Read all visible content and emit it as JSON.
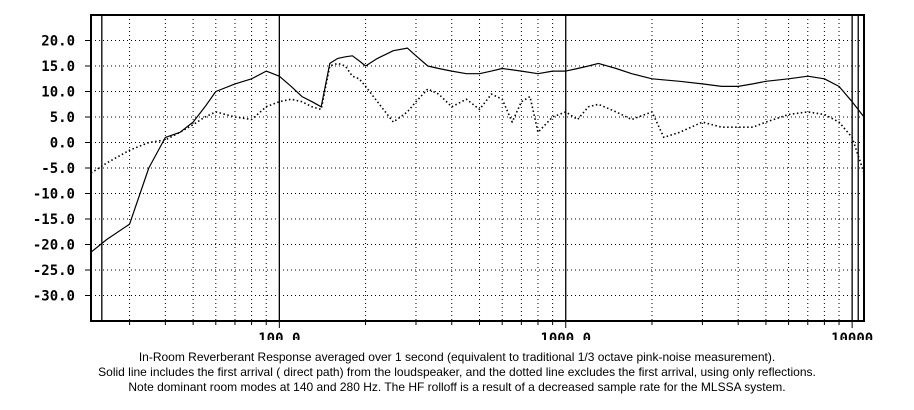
{
  "chart_data": {
    "type": "line",
    "x_scale": "log",
    "grid": true,
    "xlim": [
      22,
      11000
    ],
    "ylim": [
      -35,
      25
    ],
    "y_ticks": [
      "20.0",
      "15.0",
      "10.0",
      "5.0",
      "0.0",
      "-5.0",
      "-10.0",
      "-15.0",
      "-20.0",
      "-25.0",
      "-30.0"
    ],
    "x_ticks": [
      "100.0",
      "1000.0",
      "10000"
    ],
    "caption": [
      "In-Room Reverberant Response averaged over 1 second (equivalent to traditional 1/3 octave pink-noise measurement).",
      "Solid line includes the first arrival ( direct path) from the loudspeaker, and the dotted line excludes the first arrival, using only reflections.",
      "Note dominant room modes at 140 and 280 Hz. The HF rolloff is a result of a decreased sample rate for the MLSSA system."
    ],
    "series": [
      {
        "style": "solid",
        "x": [
          22,
          25,
          30,
          35,
          40,
          45,
          50,
          55,
          60,
          70,
          80,
          90,
          100,
          110,
          120,
          130,
          140,
          150,
          160,
          170,
          180,
          190,
          200,
          220,
          250,
          280,
          300,
          330,
          360,
          400,
          450,
          500,
          550,
          600,
          700,
          800,
          900,
          1000,
          1100,
          1200,
          1300,
          1500,
          1700,
          2000,
          2500,
          3000,
          3500,
          4000,
          4500,
          5000,
          6000,
          7000,
          8000,
          9000,
          10000,
          11000
        ],
        "y": [
          -21.5,
          -19,
          -16,
          -5,
          1,
          2,
          4,
          7,
          10,
          11.5,
          12.5,
          14,
          13,
          11,
          9,
          8,
          7,
          15.5,
          16.5,
          16.8,
          17,
          16,
          15,
          16.5,
          18,
          18.5,
          17,
          15,
          14.5,
          14,
          13.5,
          13.5,
          14,
          14.5,
          14,
          13.5,
          14,
          14,
          14.5,
          15,
          15.5,
          14.5,
          13.5,
          12.5,
          12,
          11.5,
          11,
          11,
          11.5,
          12,
          12.5,
          13,
          12.5,
          11,
          8,
          5
        ]
      },
      {
        "style": "dotted",
        "x": [
          22,
          25,
          30,
          35,
          40,
          45,
          50,
          55,
          60,
          70,
          80,
          90,
          100,
          110,
          120,
          130,
          140,
          150,
          160,
          170,
          180,
          190,
          200,
          220,
          250,
          280,
          300,
          330,
          360,
          400,
          450,
          500,
          550,
          600,
          650,
          700,
          750,
          800,
          900,
          1000,
          1100,
          1200,
          1300,
          1500,
          1700,
          2000,
          2200,
          2500,
          3000,
          3500,
          4000,
          4500,
          5000,
          6000,
          7000,
          8000,
          9000,
          10000,
          11000
        ],
        "y": [
          -6,
          -4,
          -1.5,
          0,
          0.5,
          2,
          3.5,
          5,
          6,
          5,
          4.5,
          7,
          8,
          8.5,
          8,
          7,
          6.5,
          15,
          15.5,
          15,
          13,
          12.5,
          11,
          8,
          4,
          6,
          8,
          10.5,
          9.5,
          7,
          8.5,
          6.5,
          9.5,
          8.5,
          4,
          8,
          9,
          2,
          5,
          6,
          4.5,
          7,
          7.5,
          6,
          4.5,
          6,
          1,
          2,
          4,
          3,
          3,
          3,
          4,
          5.5,
          6,
          5.5,
          4,
          1,
          -6
        ]
      }
    ]
  }
}
